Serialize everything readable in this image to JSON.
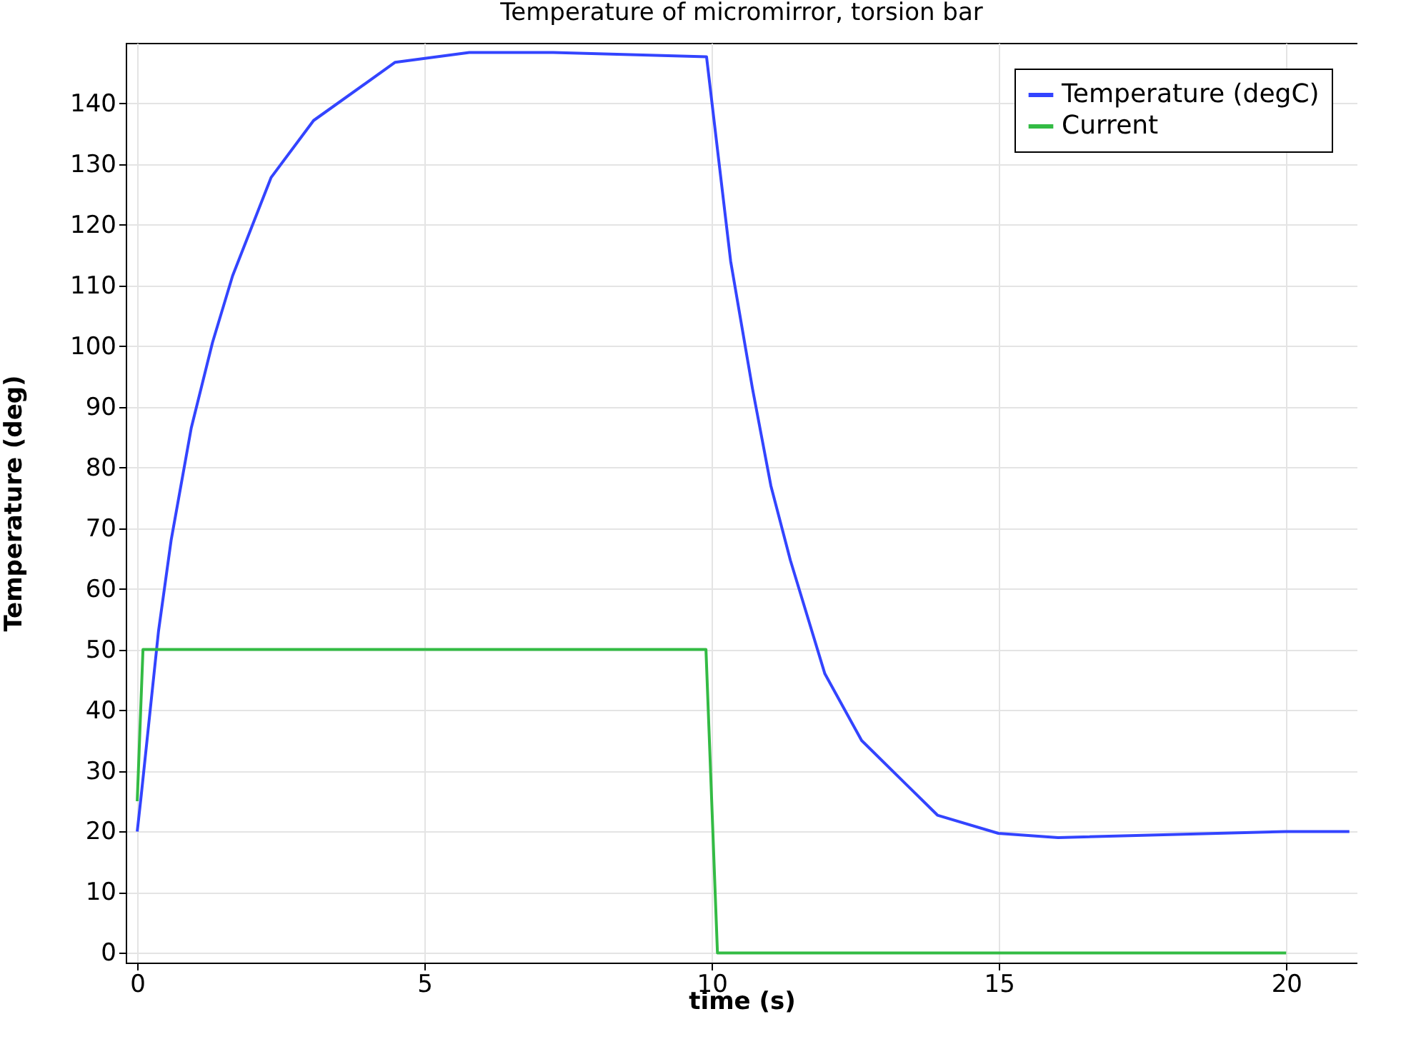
{
  "chart_data": {
    "type": "line",
    "title": "Temperature of micromirror, torsion bar",
    "xlabel": "time (s)",
    "ylabel": "Temperature (deg)",
    "xlim": [
      -0.2,
      21.24
    ],
    "xticks": [
      0,
      5,
      10,
      15,
      20
    ],
    "ylim": [
      -1.6,
      150
    ],
    "yticks": [
      0,
      10,
      20,
      30,
      40,
      50,
      60,
      70,
      80,
      90,
      100,
      110,
      120,
      130,
      140
    ],
    "grid": true,
    "legend": "top right",
    "series": [
      {
        "name": "Temperature (degC)",
        "color": "#3344ff",
        "x": [
          0,
          0.07,
          0.37,
          0.59,
          0.94,
          1.31,
          1.66,
          2.33,
          3.07,
          4.49,
          5.78,
          7.24,
          9.91,
          10.33,
          10.71,
          11.03,
          11.37,
          11.97,
          12.61,
          13.93,
          14.99,
          16.03,
          20,
          21.1
        ],
        "values": [
          20,
          26,
          53,
          68,
          86.5,
          100.6,
          111.6,
          127.8,
          137.2,
          146.8,
          148.4,
          148.4,
          147.7,
          114,
          93,
          77,
          64.7,
          46,
          35,
          22.7,
          19.7,
          19,
          20,
          20
        ]
      },
      {
        "name": "Current",
        "color": "#33bb44",
        "x": [
          0,
          0.1,
          9.9,
          10.1,
          20
        ],
        "values": [
          25,
          50,
          50,
          0,
          0
        ]
      }
    ]
  }
}
